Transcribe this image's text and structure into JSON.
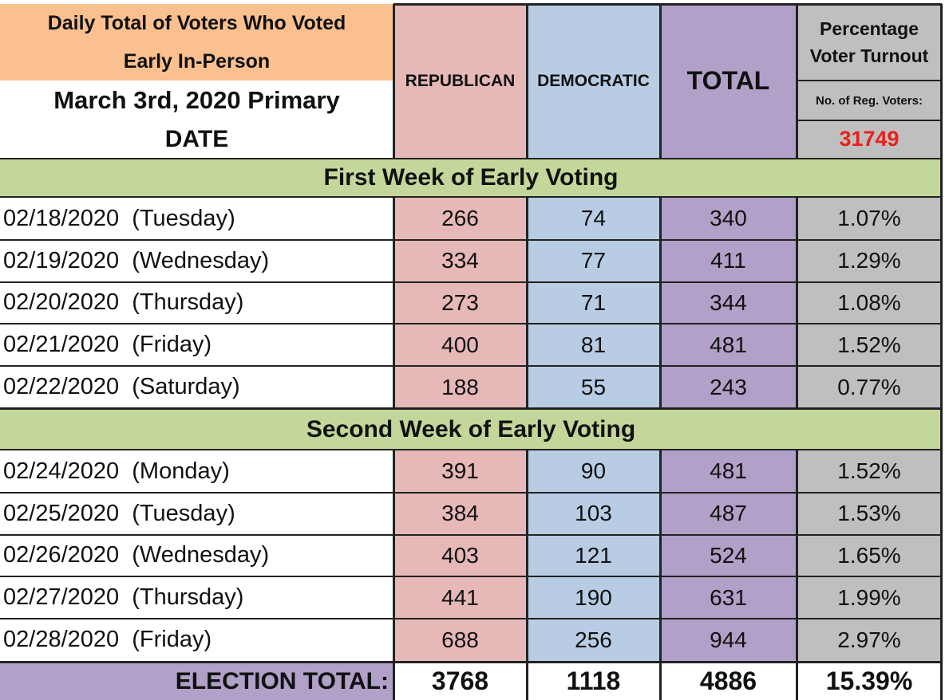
{
  "header": {
    "title_line1": "Daily Total of Voters Who Voted",
    "title_line2": "Early In-Person",
    "election": "March 3rd, 2020 Primary",
    "date_label": "DATE",
    "republican": "REPUBLICAN",
    "democratic": "DEMOCRATIC",
    "total": "TOTAL",
    "pct_line1": "Percentage",
    "pct_line2": "Voter Turnout",
    "reg_label": "No. of Reg. Voters:",
    "reg_value": "31749"
  },
  "week1": {
    "label": "First Week of Early Voting",
    "rows": [
      {
        "date": "02/18/2020  (Tuesday)",
        "rep": "266",
        "dem": "74",
        "total": "340",
        "pct": "1.07%"
      },
      {
        "date": "02/19/2020  (Wednesday)",
        "rep": "334",
        "dem": "77",
        "total": "411",
        "pct": "1.29%"
      },
      {
        "date": "02/20/2020  (Thursday)",
        "rep": "273",
        "dem": "71",
        "total": "344",
        "pct": "1.08%"
      },
      {
        "date": "02/21/2020  (Friday)",
        "rep": "400",
        "dem": "81",
        "total": "481",
        "pct": "1.52%"
      },
      {
        "date": "02/22/2020  (Saturday)",
        "rep": "188",
        "dem": "55",
        "total": "243",
        "pct": "0.77%"
      }
    ]
  },
  "week2": {
    "label": "Second Week of Early Voting",
    "rows": [
      {
        "date": "02/24/2020  (Monday)",
        "rep": "391",
        "dem": "90",
        "total": "481",
        "pct": "1.52%"
      },
      {
        "date": "02/25/2020  (Tuesday)",
        "rep": "384",
        "dem": "103",
        "total": "487",
        "pct": "1.53%"
      },
      {
        "date": "02/26/2020  (Wednesday)",
        "rep": "403",
        "dem": "121",
        "total": "524",
        "pct": "1.65%"
      },
      {
        "date": "02/27/2020  (Thursday)",
        "rep": "441",
        "dem": "190",
        "total": "631",
        "pct": "1.99%"
      },
      {
        "date": "02/28/2020  (Friday)",
        "rep": "688",
        "dem": "256",
        "total": "944",
        "pct": "2.97%"
      }
    ]
  },
  "footer": {
    "label": "ELECTION TOTAL:",
    "rep": "3768",
    "dem": "1118",
    "total": "4886",
    "pct": "15.39%"
  },
  "colors": {
    "republican": "#e6b8b7",
    "democratic": "#b8cce4",
    "total": "#b1a0c7",
    "percentage": "#bfbfbf",
    "week_band": "#c4d79b",
    "title_band": "#fac090",
    "reg_value": "#e8201c"
  }
}
